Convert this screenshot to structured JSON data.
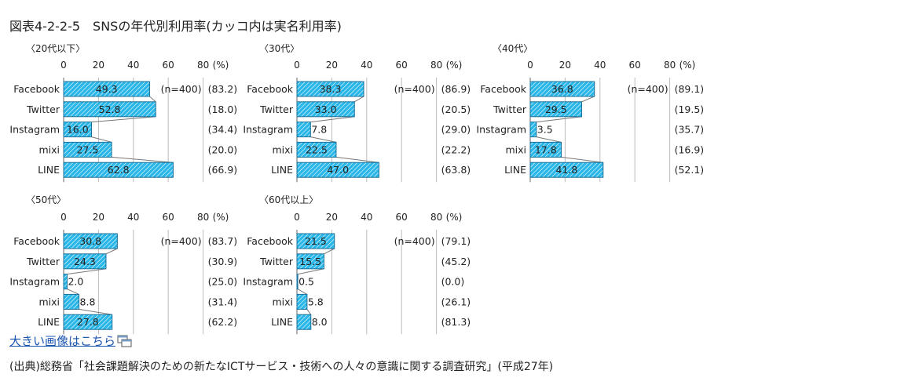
{
  "title": "図表4-2-2-5　SNSの年代別利用率(カッコ内は実名利用率)",
  "link_text": "大きい画像はこちら",
  "source": "(出典)総務省「社会課題解決のための新たなICTサービス・技術への人々の意識に関する調査研究」(平成27年)",
  "colors": {
    "bar_fill": "#29b6e8",
    "bar_stroke": "#1a6f99",
    "grid": "#bbbbbb",
    "hatch": "#ffffff"
  },
  "chart_data": [
    {
      "type": "bar",
      "title": "〈20代以下〉",
      "categories": [
        "Facebook",
        "Twitter",
        "Instagram",
        "mixi",
        "LINE"
      ],
      "values": [
        49.3,
        52.8,
        16.0,
        27.5,
        62.8
      ],
      "value_labels": [
        "49.3",
        "52.8",
        "16.0",
        "27.5",
        "62.8"
      ],
      "real_name_rates": [
        "(83.2)",
        "(18.0)",
        "(34.4)",
        "(20.0)",
        "(66.9)"
      ],
      "n_label": "(n=400)",
      "xticks": [
        "0",
        "20",
        "40",
        "60",
        "80"
      ],
      "unit": "(%)",
      "xlim": [
        0,
        80
      ]
    },
    {
      "type": "bar",
      "title": "〈30代〉",
      "categories": [
        "Facebook",
        "Twitter",
        "Instagram",
        "mixi",
        "LINE"
      ],
      "values": [
        38.3,
        33.0,
        7.8,
        22.5,
        47.0
      ],
      "value_labels": [
        "38.3",
        "33.0",
        "7.8",
        "22.5",
        "47.0"
      ],
      "real_name_rates": [
        "(86.9)",
        "(20.5)",
        "(29.0)",
        "(22.2)",
        "(63.8)"
      ],
      "n_label": "(n=400)",
      "xticks": [
        "0",
        "20",
        "40",
        "60",
        "80"
      ],
      "unit": "(%)",
      "xlim": [
        0,
        80
      ]
    },
    {
      "type": "bar",
      "title": "〈40代〉",
      "categories": [
        "Facebook",
        "Twitter",
        "Instagram",
        "mixi",
        "LINE"
      ],
      "values": [
        36.8,
        29.5,
        3.5,
        17.8,
        41.8
      ],
      "value_labels": [
        "36.8",
        "29.5",
        "3.5",
        "17.8",
        "41.8"
      ],
      "real_name_rates": [
        "(89.1)",
        "(19.5)",
        "(35.7)",
        "(16.9)",
        "(52.1)"
      ],
      "n_label": "(n=400)",
      "xticks": [
        "0",
        "20",
        "40",
        "60",
        "80"
      ],
      "unit": "(%)",
      "xlim": [
        0,
        80
      ]
    },
    {
      "type": "bar",
      "title": "〈50代〉",
      "categories": [
        "Facebook",
        "Twitter",
        "Instagram",
        "mixi",
        "LINE"
      ],
      "values": [
        30.8,
        24.3,
        2.0,
        8.8,
        27.8
      ],
      "value_labels": [
        "30.8",
        "24.3",
        "2.0",
        "8.8",
        "27.8"
      ],
      "real_name_rates": [
        "(83.7)",
        "(30.9)",
        "(25.0)",
        "(31.4)",
        "(62.2)"
      ],
      "n_label": "(n=400)",
      "xticks": [
        "0",
        "20",
        "40",
        "60",
        "80"
      ],
      "unit": "(%)",
      "xlim": [
        0,
        80
      ]
    },
    {
      "type": "bar",
      "title": "〈60代以上〉",
      "categories": [
        "Facebook",
        "Twitter",
        "Instagram",
        "mixi",
        "LINE"
      ],
      "values": [
        21.5,
        15.5,
        0.5,
        5.8,
        8.0
      ],
      "value_labels": [
        "21.5",
        "15.5",
        "0.5",
        "5.8",
        "8.0"
      ],
      "real_name_rates": [
        "(79.1)",
        "(45.2)",
        "(0.0)",
        "(26.1)",
        "(81.3)"
      ],
      "n_label": "(n=400)",
      "xticks": [
        "0",
        "20",
        "40",
        "60",
        "80"
      ],
      "unit": "(%)",
      "xlim": [
        0,
        80
      ]
    }
  ]
}
